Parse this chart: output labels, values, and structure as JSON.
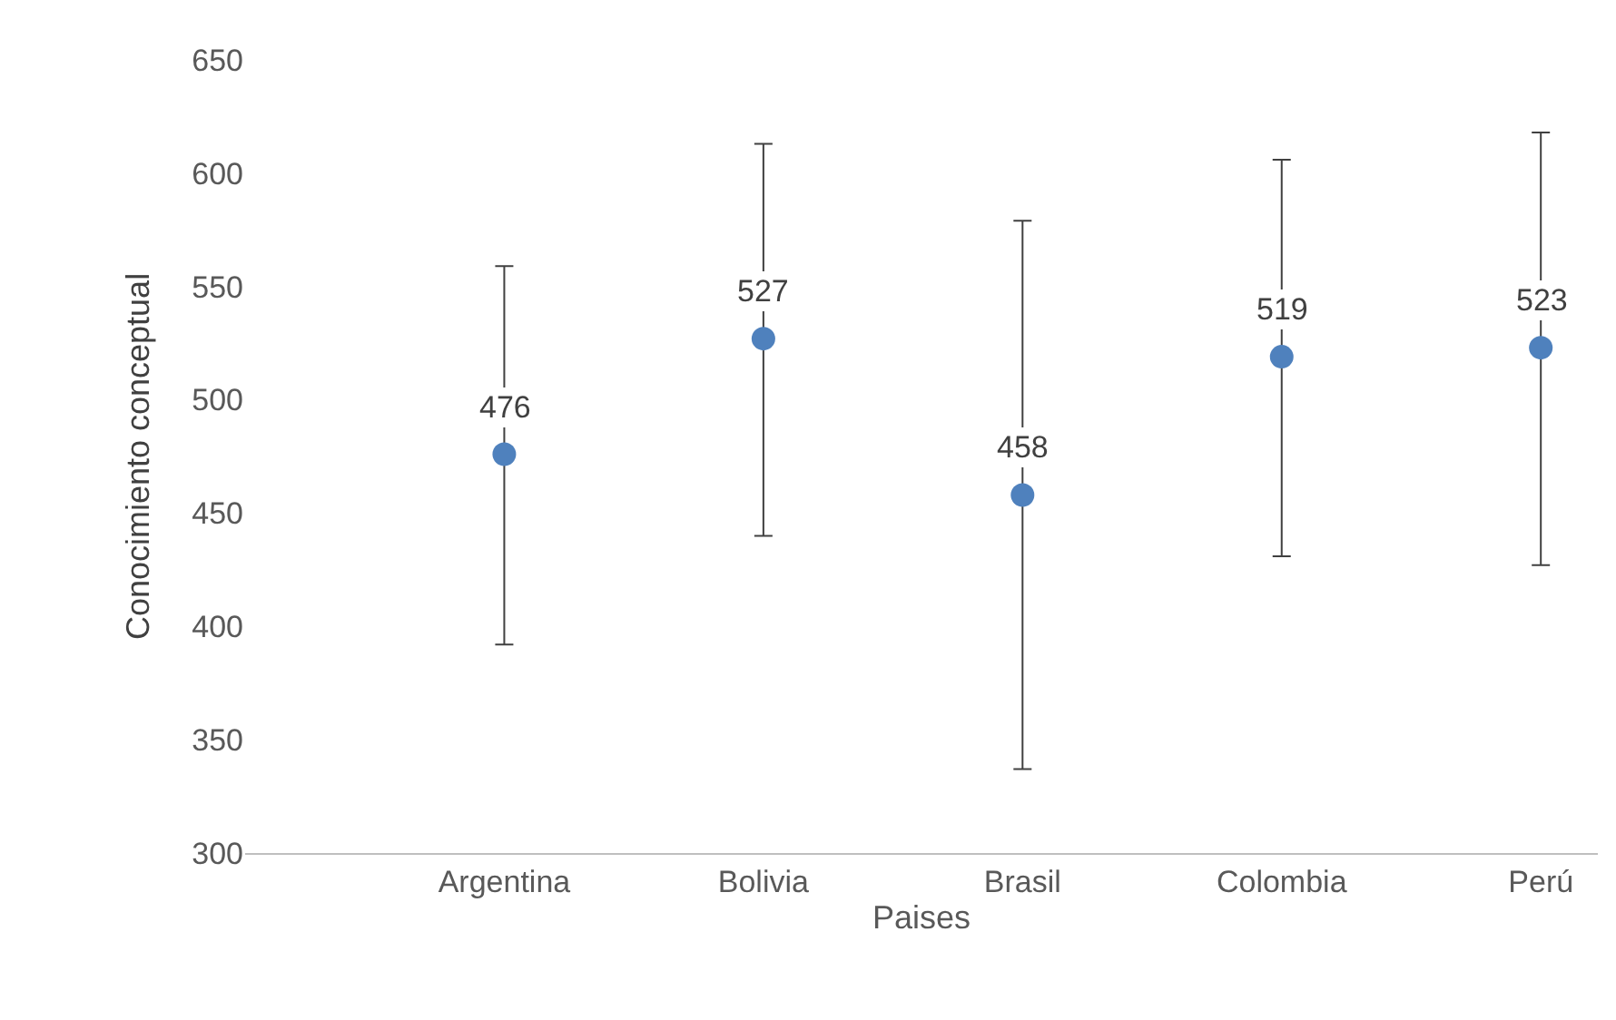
{
  "chart_data": {
    "type": "scatter",
    "xlabel": "Paises",
    "ylabel": "Conocimiento conceptual",
    "categories": [
      null,
      "Argentina",
      "Bolivia",
      "Brasil",
      "Colombia",
      "Perú"
    ],
    "series": [
      {
        "color": "#4f81bd",
        "values": [
          null,
          476,
          527,
          458,
          519,
          523
        ],
        "errors": [
          null,
          [
            392,
            559
          ],
          [
            440,
            613
          ],
          [
            337,
            579
          ],
          [
            431,
            606
          ],
          [
            427,
            618
          ]
        ]
      }
    ],
    "ylim": [
      300,
      650
    ],
    "yticks": [
      300,
      350,
      400,
      450,
      500,
      550,
      600,
      650
    ],
    "data_labels": true,
    "legend": false,
    "marker": "circle"
  }
}
